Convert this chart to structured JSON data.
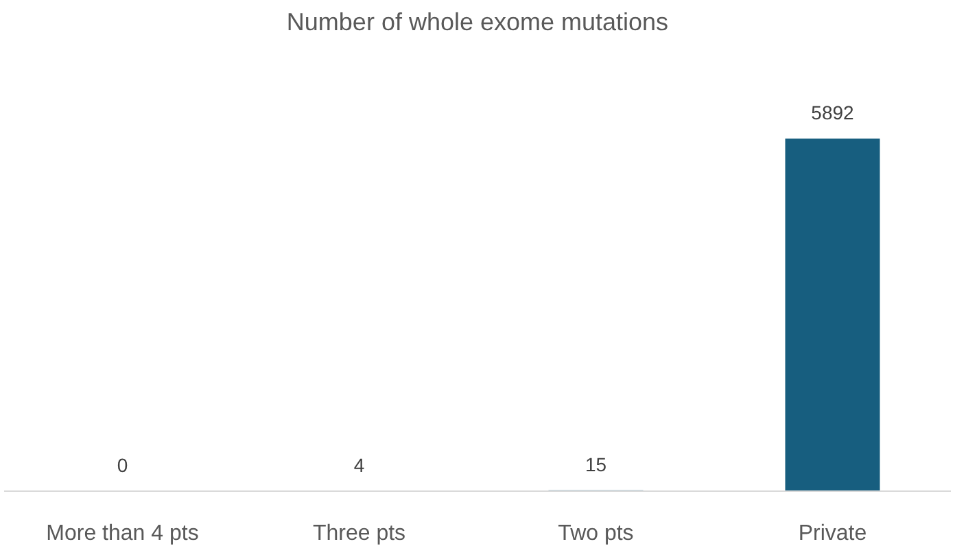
{
  "chart_data": {
    "type": "bar",
    "title": "Number of whole exome mutations",
    "categories": [
      "More than 4 pts",
      "Three pts",
      "Two pts",
      "Private"
    ],
    "values": [
      0,
      4,
      15,
      5892
    ],
    "color": "#175e7f",
    "data_labels": true,
    "tick_labels": "x"
  }
}
